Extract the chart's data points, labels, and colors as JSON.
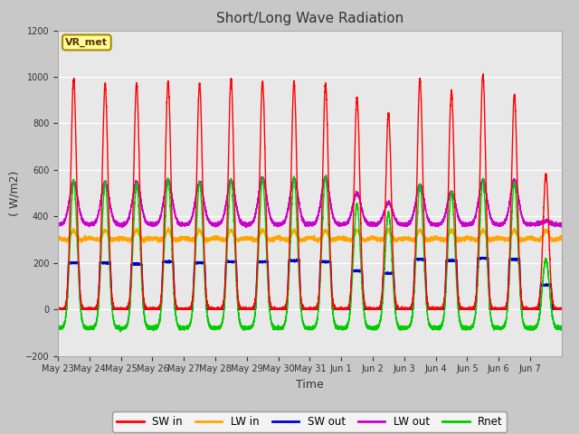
{
  "title": "Short/Long Wave Radiation",
  "xlabel": "Time",
  "ylabel": "( W/m2)",
  "ylim": [
    -200,
    1200
  ],
  "yticks": [
    -200,
    0,
    200,
    400,
    600,
    800,
    1000,
    1200
  ],
  "annotation_text": "VR_met",
  "fig_bg_color": "#c8c8c8",
  "plot_bg_color": "#e8e8e8",
  "grid_color": "#ffffff",
  "tick_labels": [
    "May 23",
    "May 24",
    "May 25",
    "May 26",
    "May 27",
    "May 28",
    "May 29",
    "May 30",
    "May 31",
    "Jun 1",
    "Jun 2",
    "Jun 3",
    "Jun 4",
    "Jun 5",
    "Jun 6",
    "Jun 7"
  ],
  "sw_in_peaks": [
    990,
    970,
    970,
    980,
    970,
    990,
    980,
    975,
    970,
    910,
    845,
    990,
    940,
    1010,
    920,
    580
  ],
  "sw_out_peaks": [
    200,
    200,
    195,
    205,
    200,
    205,
    205,
    210,
    205,
    165,
    155,
    215,
    210,
    220,
    215,
    105
  ],
  "lw_out_peaks": [
    550,
    545,
    545,
    555,
    545,
    555,
    565,
    560,
    565,
    500,
    460,
    535,
    505,
    555,
    555,
    380
  ],
  "rnet_peaks": [
    555,
    545,
    540,
    558,
    548,
    558,
    562,
    565,
    570,
    450,
    415,
    535,
    505,
    555,
    548,
    215
  ],
  "lw_in_night": 310,
  "lw_out_night": 365,
  "rnet_night": -80
}
